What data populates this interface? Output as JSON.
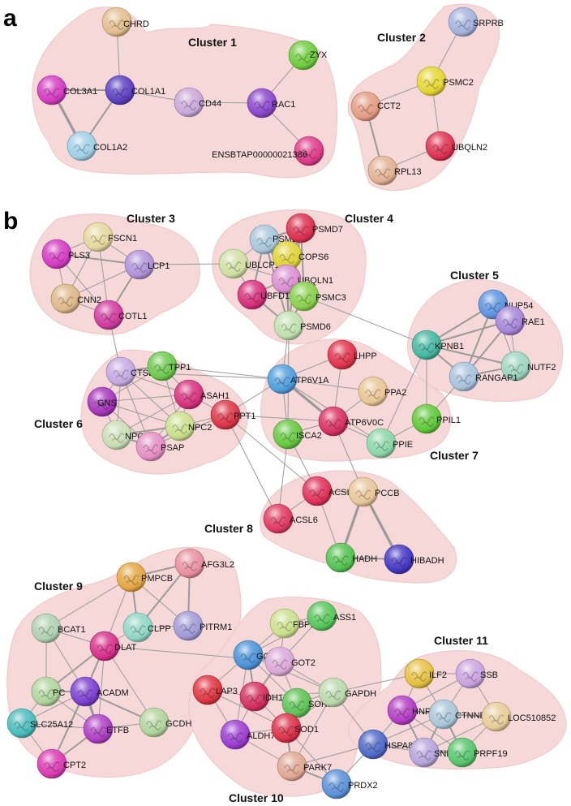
{
  "panels": [
    {
      "letter": "a"
    },
    {
      "letter": "b"
    }
  ],
  "clusters": [
    {
      "id": "c1",
      "label": "Cluster 1"
    },
    {
      "id": "c2",
      "label": "Cluster 2"
    },
    {
      "id": "c3",
      "label": "Cluster 3"
    },
    {
      "id": "c4",
      "label": "Cluster 4"
    },
    {
      "id": "c5",
      "label": "Cluster 5"
    },
    {
      "id": "c6",
      "label": "Cluster 6"
    },
    {
      "id": "c7",
      "label": "Cluster 7"
    },
    {
      "id": "c8",
      "label": "Cluster 8"
    },
    {
      "id": "c9",
      "label": "Cluster 9"
    },
    {
      "id": "c10",
      "label": "Cluster 10"
    },
    {
      "id": "c11",
      "label": "Cluster 11"
    }
  ],
  "nodes": [
    {
      "id": "CHRD",
      "label": "CHRD",
      "color": "#e2bd8c"
    },
    {
      "id": "COL1A1",
      "label": "COL1A1",
      "color": "#5a3fc0"
    },
    {
      "id": "COL3A1",
      "label": "COL3A1",
      "color": "#d33ac0"
    },
    {
      "id": "COL1A2",
      "label": "COL1A2",
      "color": "#9fcfe6"
    },
    {
      "id": "CD44",
      "label": "CD44",
      "color": "#c9a6d8"
    },
    {
      "id": "RAC1",
      "label": "RAC1",
      "color": "#8a46cc"
    },
    {
      "id": "ZYX",
      "label": "ZYX",
      "color": "#6dcc3c"
    },
    {
      "id": "ENSBTAP00000021386",
      "label": "ENSBTAP00000021386",
      "color": "#de3a86"
    },
    {
      "id": "SRPRB",
      "label": "SRPRB",
      "color": "#a4b2dc"
    },
    {
      "id": "PSMC2",
      "label": "PSMC2",
      "color": "#e3d632"
    },
    {
      "id": "CCT2",
      "label": "CCT2",
      "color": "#e39c82"
    },
    {
      "id": "UBQLN2",
      "label": "UBQLN2",
      "color": "#dd3050"
    },
    {
      "id": "RPL13",
      "label": "RPL13",
      "color": "#e2b193"
    },
    {
      "id": "FSCN1",
      "label": "FSCN1",
      "color": "#e3d79c"
    },
    {
      "id": "PLS3",
      "label": "PLS3",
      "color": "#d33ac0"
    },
    {
      "id": "LCP1",
      "label": "LCP1",
      "color": "#b091d8"
    },
    {
      "id": "CNN2",
      "label": "CNN2",
      "color": "#ddb787"
    },
    {
      "id": "COTL1",
      "label": "COTL1",
      "color": "#cf3a9e"
    },
    {
      "id": "PSMB3",
      "label": "PSMB3",
      "color": "#a8c6da"
    },
    {
      "id": "PSMD7",
      "label": "PSMD7",
      "color": "#d9304e"
    },
    {
      "id": "UBLCP1",
      "label": "UBLCP1",
      "color": "#cfe0a2"
    },
    {
      "id": "COPS6",
      "label": "COPS6",
      "color": "#dfd236"
    },
    {
      "id": "UBQLN1",
      "label": "UBQLN1",
      "color": "#d98ed0"
    },
    {
      "id": "UBFD1",
      "label": "UBFD1",
      "color": "#d42e7a"
    },
    {
      "id": "PSMC3",
      "label": "PSMC3",
      "color": "#88d04c"
    },
    {
      "id": "PSMD6",
      "label": "PSMD6",
      "color": "#bfe0ae"
    },
    {
      "id": "NUP54",
      "label": "NUP54",
      "color": "#5b92de"
    },
    {
      "id": "RAE1",
      "label": "RAE1",
      "color": "#a584d8"
    },
    {
      "id": "KPNB1",
      "label": "KPNB1",
      "color": "#44b6a0"
    },
    {
      "id": "NUTF2",
      "label": "NUTF2",
      "color": "#9cd4c0"
    },
    {
      "id": "RANGAP1",
      "label": "RANGAP1",
      "color": "#a8c2dc"
    },
    {
      "id": "CTSB",
      "label": "CTSB",
      "color": "#c4a9e0"
    },
    {
      "id": "TPP1",
      "label": "TPP1",
      "color": "#6cc84c"
    },
    {
      "id": "GNS",
      "label": "GNS",
      "color": "#a535bb"
    },
    {
      "id": "ASAH1",
      "label": "ASAH1",
      "color": "#d6307c"
    },
    {
      "id": "NPC2",
      "label": "NPC2",
      "color": "#c9de8c"
    },
    {
      "id": "PPT1",
      "label": "PPT1",
      "color": "#dc3446"
    },
    {
      "id": "NPC1",
      "label": "NPC1",
      "color": "#c9ddb4"
    },
    {
      "id": "PSAP",
      "label": "PSAP",
      "color": "#e58ec4"
    },
    {
      "id": "LHPP",
      "label": "LHPP",
      "color": "#e0324c"
    },
    {
      "id": "ATP6V1A",
      "label": "ATP6V1A",
      "color": "#4e9edd"
    },
    {
      "id": "PPA2",
      "label": "PPA2",
      "color": "#e8c694"
    },
    {
      "id": "ATP6V0C",
      "label": "ATP6V0C",
      "color": "#d92e62"
    },
    {
      "id": "ISCA2",
      "label": "ISCA2",
      "color": "#66c840"
    },
    {
      "id": "PPIE",
      "label": "PPIE",
      "color": "#8bd6a8"
    },
    {
      "id": "PPIL1",
      "label": "PPIL1",
      "color": "#60c838"
    },
    {
      "id": "ACSL5",
      "label": "ACSL5",
      "color": "#e0305a"
    },
    {
      "id": "PCCB",
      "label": "PCCB",
      "color": "#e8c69a"
    },
    {
      "id": "ACSL6",
      "label": "ACSL6",
      "color": "#de3a60"
    },
    {
      "id": "HADH",
      "label": "HADH",
      "color": "#52c250"
    },
    {
      "id": "HIBADH",
      "label": "HIBADH",
      "color": "#4336c4"
    },
    {
      "id": "PMPCB",
      "label": "PMPCB",
      "color": "#e3a642"
    },
    {
      "id": "AFG3L2",
      "label": "AFG3L2",
      "color": "#e78f9e"
    },
    {
      "id": "BCAT1",
      "label": "BCAT1",
      "color": "#b0cfb0"
    },
    {
      "id": "CLPP",
      "label": "CLPP",
      "color": "#8ed6c4"
    },
    {
      "id": "PITRM1",
      "label": "PITRM1",
      "color": "#a09ad6"
    },
    {
      "id": "DLAT",
      "label": "DLAT",
      "color": "#d72e8a"
    },
    {
      "id": "PC",
      "label": "PC",
      "color": "#aed49c"
    },
    {
      "id": "ACADM",
      "label": "ACADM",
      "color": "#7a3ed0"
    },
    {
      "id": "SLC25A12",
      "label": "SLC25A12",
      "color": "#48bcbc"
    },
    {
      "id": "ETFB",
      "label": "ETFB",
      "color": "#ad3ec4"
    },
    {
      "id": "GCDH",
      "label": "GCDH",
      "color": "#b0d49c"
    },
    {
      "id": "CPT2",
      "label": "CPT2",
      "color": "#da3ab2"
    },
    {
      "id": "FBP1",
      "label": "FBP1",
      "color": "#c9e08c"
    },
    {
      "id": "ASS1",
      "label": "ASS1",
      "color": "#56c55a"
    },
    {
      "id": "GOT1",
      "label": "GOT1",
      "color": "#4a92d8"
    },
    {
      "id": "GOT2",
      "label": "GOT2",
      "color": "#d9a8d8"
    },
    {
      "id": "LAP3",
      "label": "LAP3",
      "color": "#de3440"
    },
    {
      "id": "IDH1",
      "label": "IDH1",
      "color": "#d42e5c"
    },
    {
      "id": "SORD",
      "label": "SORD",
      "color": "#5cc254"
    },
    {
      "id": "GAPDH",
      "label": "GAPDH",
      "color": "#b9d8ac"
    },
    {
      "id": "ALDH7A1",
      "label": "ALDH7A1",
      "color": "#9a3cd0"
    },
    {
      "id": "SOD1",
      "label": "SOD1",
      "color": "#dc2e48"
    },
    {
      "id": "PARK7",
      "label": "PARK7",
      "color": "#e0a892"
    },
    {
      "id": "PRDX2",
      "label": "PRDX2",
      "color": "#5a90d6"
    },
    {
      "id": "HSPA8",
      "label": "HSPA8",
      "color": "#4e68c6"
    },
    {
      "id": "ILF2",
      "label": "ILF2",
      "color": "#e4c040"
    },
    {
      "id": "SSB",
      "label": "SSB",
      "color": "#c9a2de"
    },
    {
      "id": "HNRNPL",
      "label": "HNRNPL",
      "color": "#b23cc2"
    },
    {
      "id": "CTNNBL1",
      "label": "CTNNBL1",
      "color": "#a9c6d8"
    },
    {
      "id": "LOC510852",
      "label": "LOC510852",
      "color": "#e6cc98"
    },
    {
      "id": "SNRPE",
      "label": "SNRPE",
      "color": "#b6a4dc"
    },
    {
      "id": "PRPF19",
      "label": "PRPF19",
      "color": "#56c56c"
    }
  ],
  "edges": [
    [
      "CHRD",
      "COL1A1",
      1
    ],
    [
      "COL1A1",
      "COL3A1",
      2
    ],
    [
      "COL1A1",
      "COL1A2",
      2
    ],
    [
      "COL3A1",
      "COL1A2",
      3
    ],
    [
      "COL1A1",
      "CD44",
      1
    ],
    [
      "CD44",
      "RAC1",
      1
    ],
    [
      "RAC1",
      "ZYX",
      1
    ],
    [
      "RAC1",
      "ENSBTAP00000021386",
      1
    ],
    [
      "SRPRB",
      "PSMC2",
      1
    ],
    [
      "PSMC2",
      "CCT2",
      1
    ],
    [
      "PSMC2",
      "UBQLN2",
      1
    ],
    [
      "CCT2",
      "RPL13",
      2
    ],
    [
      "UBQLN2",
      "RPL13",
      1
    ],
    [
      "FSCN1",
      "PLS3",
      1
    ],
    [
      "FSCN1",
      "LCP1",
      1
    ],
    [
      "FSCN1",
      "CNN2",
      1
    ],
    [
      "FSCN1",
      "COTL1",
      1
    ],
    [
      "PLS3",
      "LCP1",
      2
    ],
    [
      "PLS3",
      "CNN2",
      1
    ],
    [
      "PLS3",
      "COTL1",
      1
    ],
    [
      "LCP1",
      "CNN2",
      1
    ],
    [
      "LCP1",
      "COTL1",
      2
    ],
    [
      "CNN2",
      "COTL1",
      1
    ],
    [
      "LCP1",
      "UBLCP1",
      1
    ],
    [
      "COTL1",
      "CTSB",
      1
    ],
    [
      "PSMB3",
      "PSMD7",
      2
    ],
    [
      "PSMB3",
      "UBLCP1",
      1
    ],
    [
      "PSMB3",
      "COPS6",
      2
    ],
    [
      "PSMB3",
      "UBQLN1",
      2
    ],
    [
      "PSMB3",
      "UBFD1",
      2
    ],
    [
      "PSMB3",
      "PSMC3",
      2
    ],
    [
      "PSMB3",
      "PSMD6",
      2
    ],
    [
      "PSMD7",
      "COPS6",
      2
    ],
    [
      "PSMD7",
      "UBQLN1",
      2
    ],
    [
      "PSMD7",
      "PSMC3",
      2
    ],
    [
      "PSMD7",
      "PSMD6",
      2
    ],
    [
      "UBLCP1",
      "UBFD1",
      1
    ],
    [
      "UBLCP1",
      "UBQLN1",
      1
    ],
    [
      "COPS6",
      "PSMC3",
      2
    ],
    [
      "COPS6",
      "PSMD6",
      2
    ],
    [
      "UBQLN1",
      "UBFD1",
      2
    ],
    [
      "UBQLN1",
      "PSMC3",
      2
    ],
    [
      "UBFD1",
      "PSMD6",
      2
    ],
    [
      "PSMC3",
      "PSMD6",
      2
    ],
    [
      "UBQLN1",
      "PSMD6",
      2
    ],
    [
      "PSMD6",
      "ATP6V1A",
      1
    ],
    [
      "PSMD6",
      "ISCA2",
      1
    ],
    [
      "PSMC3",
      "KPNB1",
      1
    ],
    [
      "NUP54",
      "RAE1",
      2
    ],
    [
      "NUP54",
      "KPNB1",
      2
    ],
    [
      "NUP54",
      "RANGAP1",
      2
    ],
    [
      "NUP54",
      "NUTF2",
      1
    ],
    [
      "RAE1",
      "KPNB1",
      2
    ],
    [
      "RAE1",
      "NUTF2",
      1
    ],
    [
      "RAE1",
      "RANGAP1",
      2
    ],
    [
      "KPNB1",
      "NUTF2",
      2
    ],
    [
      "KPNB1",
      "RANGAP1",
      2
    ],
    [
      "NUTF2",
      "RANGAP1",
      2
    ],
    [
      "KPNB1",
      "PPIL1",
      1
    ],
    [
      "KPNB1",
      "PPIE",
      1
    ],
    [
      "RANGAP1",
      "PPIL1",
      1
    ],
    [
      "CTSB",
      "TPP1",
      2
    ],
    [
      "CTSB",
      "GNS",
      1
    ],
    [
      "CTSB",
      "ASAH1",
      1
    ],
    [
      "CTSB",
      "NPC2",
      1
    ],
    [
      "CTSB",
      "NPC1",
      1
    ],
    [
      "CTSB",
      "PSAP",
      1
    ],
    [
      "CTSB",
      "ATP6V1A",
      1
    ],
    [
      "TPP1",
      "ASAH1",
      1
    ],
    [
      "TPP1",
      "NPC2",
      1
    ],
    [
      "TPP1",
      "ATP6V1A",
      1
    ],
    [
      "TPP1",
      "GNS",
      1
    ],
    [
      "GNS",
      "NPC2",
      1
    ],
    [
      "GNS",
      "NPC1",
      1
    ],
    [
      "GNS",
      "PSAP",
      1
    ],
    [
      "GNS",
      "ASAH1",
      1
    ],
    [
      "ASAH1",
      "NPC2",
      1
    ],
    [
      "ASAH1",
      "PPT1",
      1
    ],
    [
      "ASAH1",
      "PSAP",
      1
    ],
    [
      "NPC2",
      "NPC1",
      2
    ],
    [
      "NPC2",
      "PSAP",
      2
    ],
    [
      "NPC1",
      "PSAP",
      2
    ],
    [
      "NPC2",
      "PPT1",
      1
    ],
    [
      "PPT1",
      "PSAP",
      1
    ],
    [
      "PPT1",
      "ATP6V1A",
      1
    ],
    [
      "PPT1",
      "ATP6V0C",
      1
    ],
    [
      "PPT1",
      "ACSL6",
      1
    ],
    [
      "PPT1",
      "ACSL5",
      1
    ],
    [
      "NPC1",
      "ASAH1",
      1
    ],
    [
      "LHPP",
      "ATP6V1A",
      1
    ],
    [
      "ATP6V1A",
      "PPA2",
      1
    ],
    [
      "ATP6V1A",
      "ATP6V0C",
      3
    ],
    [
      "ATP6V1A",
      "ISCA2",
      1
    ],
    [
      "LHPP",
      "ATP6V0C",
      1
    ],
    [
      "PPA2",
      "ATP6V0C",
      1
    ],
    [
      "ISCA2",
      "ATP6V0C",
      1
    ],
    [
      "ATP6V0C",
      "PPIE",
      1
    ],
    [
      "PPIE",
      "PPIL1",
      1
    ],
    [
      "ATP6V0C",
      "PCCB",
      1
    ],
    [
      "ISCA2",
      "ACSL5",
      1
    ],
    [
      "ATP6V1A",
      "PPIE",
      1
    ],
    [
      "ACSL5",
      "PCCB",
      1
    ],
    [
      "ACSL5",
      "ACSL6",
      1
    ],
    [
      "ACSL5",
      "HADH",
      1
    ],
    [
      "PCCB",
      "HADH",
      3
    ],
    [
      "PCCB",
      "HIBADH",
      3
    ],
    [
      "HADH",
      "HIBADH",
      2
    ],
    [
      "ISCA2",
      "ACSL6",
      1
    ],
    [
      "PMPCB",
      "AFG3L2",
      2
    ],
    [
      "PMPCB",
      "CLPP",
      2
    ],
    [
      "PMPCB",
      "PITRM1",
      1
    ],
    [
      "PMPCB",
      "DLAT",
      1
    ],
    [
      "AFG3L2",
      "CLPP",
      2
    ],
    [
      "AFG3L2",
      "PITRM1",
      2
    ],
    [
      "CLPP",
      "DLAT",
      1
    ],
    [
      "CLPP",
      "PITRM1",
      1
    ],
    [
      "BCAT1",
      "DLAT",
      1
    ],
    [
      "BCAT1",
      "PC",
      1
    ],
    [
      "BCAT1",
      "ACADM",
      1
    ],
    [
      "DLAT",
      "PC",
      2
    ],
    [
      "DLAT",
      "ACADM",
      2
    ],
    [
      "DLAT",
      "ETFB",
      1
    ],
    [
      "DLAT",
      "CPT2",
      1
    ],
    [
      "DLAT",
      "GCDH",
      1
    ],
    [
      "DLAT",
      "GOT2",
      1
    ],
    [
      "PC",
      "ACADM",
      2
    ],
    [
      "PC",
      "ETFB",
      1
    ],
    [
      "PC",
      "SLC25A12",
      1
    ],
    [
      "ACADM",
      "ETFB",
      3
    ],
    [
      "ACADM",
      "CPT2",
      2
    ],
    [
      "ACADM",
      "GCDH",
      2
    ],
    [
      "ACADM",
      "SLC25A12",
      1
    ],
    [
      "SLC25A12",
      "ETFB",
      1
    ],
    [
      "ETFB",
      "CPT2",
      2
    ],
    [
      "ETFB",
      "GCDH",
      1
    ],
    [
      "SLC25A12",
      "CPT2",
      1
    ],
    [
      "PMPCB",
      "BCAT1",
      1
    ],
    [
      "FBP1",
      "ASS1",
      1
    ],
    [
      "FBP1",
      "GOT1",
      1
    ],
    [
      "FBP1",
      "GOT2",
      1
    ],
    [
      "ASS1",
      "GOT1",
      1
    ],
    [
      "ASS1",
      "GOT2",
      1
    ],
    [
      "GOT1",
      "GOT2",
      3
    ],
    [
      "GOT1",
      "LAP3",
      1
    ],
    [
      "GOT1",
      "IDH1",
      2
    ],
    [
      "GOT1",
      "SORD",
      1
    ],
    [
      "GOT1",
      "ALDH7A1",
      1
    ],
    [
      "GOT2",
      "IDH1",
      2
    ],
    [
      "GOT2",
      "SORD",
      1
    ],
    [
      "GOT2",
      "GAPDH",
      1
    ],
    [
      "LAP3",
      "IDH1",
      1
    ],
    [
      "LAP3",
      "SOD1",
      1
    ],
    [
      "IDH1",
      "SORD",
      1
    ],
    [
      "IDH1",
      "ALDH7A1",
      1
    ],
    [
      "IDH1",
      "SOD1",
      1
    ],
    [
      "SORD",
      "GAPDH",
      1
    ],
    [
      "SORD",
      "SOD1",
      1
    ],
    [
      "GAPDH",
      "SOD1",
      1
    ],
    [
      "GAPDH",
      "PARK7",
      1
    ],
    [
      "GAPDH",
      "HSPA8",
      1
    ],
    [
      "GAPDH",
      "ILF2",
      1
    ],
    [
      "ALDH7A1",
      "SOD1",
      1
    ],
    [
      "ALDH7A1",
      "PARK7",
      1
    ],
    [
      "SOD1",
      "PARK7",
      2
    ],
    [
      "SOD1",
      "PRDX2",
      1
    ],
    [
      "PARK7",
      "PRDX2",
      2
    ],
    [
      "PARK7",
      "HSPA8",
      1
    ],
    [
      "HSPA8",
      "PRDX2",
      1
    ],
    [
      "GOT1",
      "GAPDH",
      1
    ],
    [
      "IDH1",
      "GAPDH",
      1
    ],
    [
      "LAP3",
      "ALDH7A1",
      1
    ],
    [
      "ILF2",
      "SSB",
      1
    ],
    [
      "ILF2",
      "HNRNPL",
      1
    ],
    [
      "ILF2",
      "CTNNBL1",
      1
    ],
    [
      "SSB",
      "HNRNPL",
      1
    ],
    [
      "SSB",
      "CTNNBL1",
      1
    ],
    [
      "SSB",
      "LOC510852",
      1
    ],
    [
      "HNRNPL",
      "CTNNBL1",
      2
    ],
    [
      "HNRNPL",
      "SNRPE",
      2
    ],
    [
      "HNRNPL",
      "PRPF19",
      1
    ],
    [
      "HNRNPL",
      "HSPA8",
      1
    ],
    [
      "CTNNBL1",
      "LOC510852",
      2
    ],
    [
      "CTNNBL1",
      "SNRPE",
      2
    ],
    [
      "CTNNBL1",
      "PRPF19",
      2
    ],
    [
      "LOC510852",
      "SNRPE",
      1
    ],
    [
      "LOC510852",
      "PRPF19",
      1
    ],
    [
      "SNRPE",
      "PRPF19",
      2
    ],
    [
      "HSPA8",
      "SNRPE",
      1
    ],
    [
      "HSPA8",
      "PRPF19",
      1
    ],
    [
      "HSPA8",
      "CTNNBL1",
      1
    ]
  ]
}
